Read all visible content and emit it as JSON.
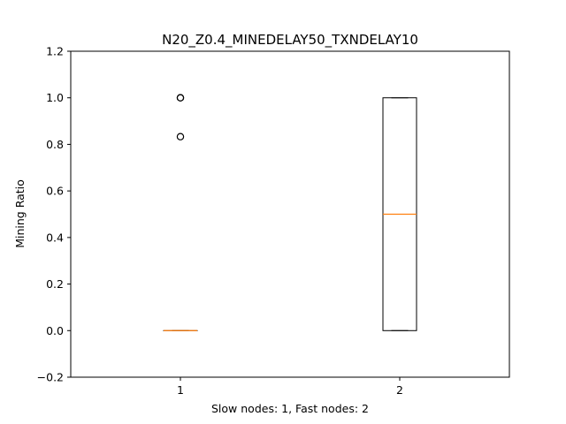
{
  "chart_data": {
    "type": "box",
    "title": "N20_Z0.4_MINEDELAY50_TXNDELAY10",
    "xlabel": "Slow nodes: 1, Fast nodes: 2",
    "ylabel": "Mining Ratio",
    "categories": [
      "1",
      "2"
    ],
    "ylim": [
      -0.2,
      1.2
    ],
    "yticks": [
      -0.2,
      0.0,
      0.2,
      0.4,
      0.6,
      0.8,
      1.0,
      1.2
    ],
    "ytick_labels": [
      "−0.2",
      "0.0",
      "0.2",
      "0.4",
      "0.6",
      "0.8",
      "1.0",
      "1.2"
    ],
    "boxes": [
      {
        "category": "1",
        "whislo": 0.0,
        "q1": 0.0,
        "med": 0.0,
        "q3": 0.0,
        "whishi": 0.0,
        "fliers": [
          1.0,
          1.0,
          0.833
        ]
      },
      {
        "category": "2",
        "whislo": 0.0,
        "q1": 0.0,
        "med": 0.5,
        "q3": 1.0,
        "whishi": 1.0,
        "fliers": []
      }
    ],
    "colors": {
      "box": "#000000",
      "median": "#ff7f0e",
      "flier": "#000000"
    },
    "grid": false
  }
}
